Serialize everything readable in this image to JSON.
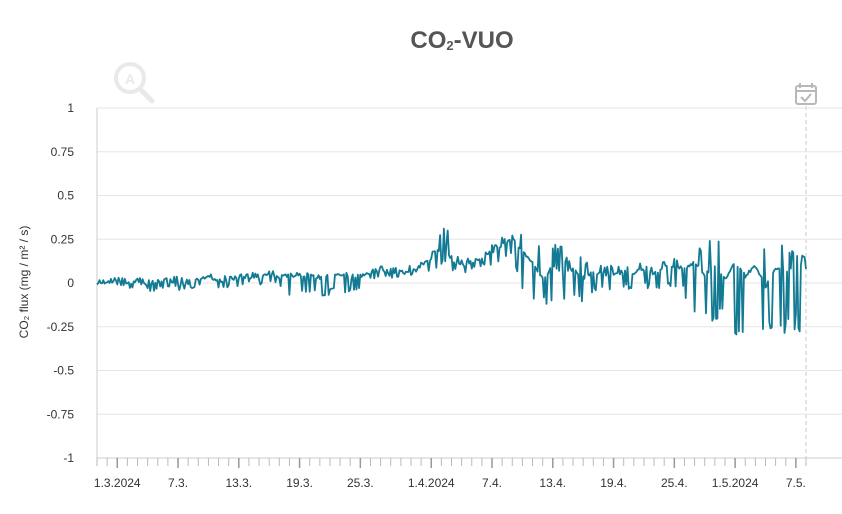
{
  "chart_data": {
    "type": "line",
    "title_main": "CO",
    "title_sub": "2",
    "title_rest": "-VUO",
    "ylabel": "CO₂ flux (mg / m² / s)",
    "ylim": [
      -1,
      1
    ],
    "yticks": [
      "1",
      "0.75",
      "0.5",
      "0.25",
      "0",
      "-0.25",
      "-0.5",
      "-0.75",
      "-1"
    ],
    "x_range": [
      "2024-02-28",
      "2024-05-08"
    ],
    "x_ticks": [
      {
        "date": "2024-03-01",
        "label": "1.3.2024"
      },
      {
        "date": "2024-03-07",
        "label": "7.3."
      },
      {
        "date": "2024-03-13",
        "label": "13.3."
      },
      {
        "date": "2024-03-19",
        "label": "19.3."
      },
      {
        "date": "2024-03-25",
        "label": "25.3."
      },
      {
        "date": "2024-04-01",
        "label": "1.4.2024"
      },
      {
        "date": "2024-04-07",
        "label": "7.4."
      },
      {
        "date": "2024-04-13",
        "label": "13.4."
      },
      {
        "date": "2024-04-19",
        "label": "19.4."
      },
      {
        "date": "2024-04-25",
        "label": "25.4."
      },
      {
        "date": "2024-05-01",
        "label": "1.5.2024"
      },
      {
        "date": "2024-05-07",
        "label": "7.5."
      }
    ],
    "grid": true,
    "series": [
      {
        "color": "#137a93",
        "x": [
          "2024-02-28",
          "2024-02-29",
          "2024-03-01",
          "2024-03-02",
          "2024-03-03",
          "2024-03-04",
          "2024-03-05",
          "2024-03-06",
          "2024-03-07",
          "2024-03-08",
          "2024-03-09",
          "2024-03-10",
          "2024-03-11",
          "2024-03-12",
          "2024-03-13",
          "2024-03-14",
          "2024-03-15",
          "2024-03-16",
          "2024-03-17",
          "2024-03-18",
          "2024-03-19",
          "2024-03-20",
          "2024-03-21",
          "2024-03-22",
          "2024-03-23",
          "2024-03-24",
          "2024-03-25",
          "2024-03-26",
          "2024-03-27",
          "2024-03-28",
          "2024-03-29",
          "2024-03-30",
          "2024-03-31",
          "2024-04-01",
          "2024-04-02",
          "2024-04-03",
          "2024-04-04",
          "2024-04-05",
          "2024-04-06",
          "2024-04-07",
          "2024-04-08",
          "2024-04-09",
          "2024-04-10",
          "2024-04-11",
          "2024-04-12",
          "2024-04-13",
          "2024-04-14",
          "2024-04-15",
          "2024-04-16",
          "2024-04-17",
          "2024-04-18",
          "2024-04-19",
          "2024-04-20",
          "2024-04-21",
          "2024-04-22",
          "2024-04-23",
          "2024-04-24",
          "2024-04-25",
          "2024-04-26",
          "2024-04-27",
          "2024-04-28",
          "2024-04-29",
          "2024-04-30",
          "2024-05-01",
          "2024-05-02",
          "2024-05-03",
          "2024-05-04",
          "2024-05-05",
          "2024-05-06",
          "2024-05-07",
          "2024-05-08"
        ],
        "y": [
          -0.01,
          0.01,
          0.02,
          0.0,
          0.01,
          -0.02,
          0.01,
          0.02,
          0.0,
          -0.01,
          0.02,
          0.03,
          0.01,
          0.02,
          0.03,
          0.04,
          0.02,
          0.05,
          0.03,
          0.04,
          0.05,
          0.04,
          0.03,
          0.04,
          0.05,
          0.03,
          0.04,
          0.06,
          0.08,
          0.06,
          0.07,
          0.05,
          0.1,
          0.14,
          0.3,
          0.12,
          0.1,
          0.12,
          0.15,
          0.18,
          0.22,
          0.25,
          0.18,
          0.12,
          0.02,
          0.1,
          0.05,
          0.08,
          0.03,
          0.06,
          0.05,
          0.04,
          0.07,
          0.06,
          0.08,
          0.05,
          0.09,
          0.1,
          0.08,
          0.12,
          0.05,
          0.1,
          0.02,
          0.12,
          0.04,
          0.1,
          -0.02,
          0.08,
          0.06,
          0.12,
          0.08
        ],
        "fluct_low": [
          0.0,
          0.0,
          -0.02,
          -0.03,
          -0.02,
          -0.05,
          -0.03,
          -0.02,
          -0.04,
          -0.03,
          -0.02,
          -0.01,
          -0.03,
          -0.02,
          -0.02,
          0.0,
          -0.01,
          0.0,
          -0.02,
          -0.08,
          -0.06,
          -0.05,
          -0.08,
          -0.04,
          -0.07,
          -0.05,
          -0.03,
          0.02,
          0.04,
          0.03,
          0.05,
          0.03,
          0.05,
          0.08,
          0.1,
          0.07,
          0.05,
          0.08,
          0.1,
          0.12,
          0.15,
          0.05,
          -0.05,
          -0.15,
          -0.12,
          -0.18,
          -0.1,
          -0.12,
          -0.08,
          -0.05,
          -0.06,
          -0.05,
          -0.04,
          -0.06,
          -0.03,
          -0.05,
          -0.02,
          -0.05,
          -0.1,
          -0.2,
          -0.25,
          -0.22,
          -0.28,
          -0.3,
          -0.25,
          -0.35,
          -0.28,
          -0.32,
          -0.3,
          -0.28,
          0.05
        ],
        "fluct_high": [
          0.02,
          0.03,
          0.03,
          0.02,
          0.03,
          0.02,
          0.03,
          0.04,
          0.03,
          0.02,
          0.04,
          0.05,
          0.04,
          0.04,
          0.05,
          0.06,
          0.05,
          0.07,
          0.05,
          0.06,
          0.06,
          0.05,
          0.05,
          0.05,
          0.06,
          0.05,
          0.05,
          0.08,
          0.1,
          0.09,
          0.1,
          0.08,
          0.12,
          0.18,
          0.32,
          0.16,
          0.14,
          0.16,
          0.18,
          0.22,
          0.26,
          0.28,
          0.24,
          0.22,
          0.18,
          0.22,
          0.15,
          0.16,
          0.12,
          0.1,
          0.1,
          0.1,
          0.1,
          0.12,
          0.1,
          0.12,
          0.12,
          0.14,
          0.16,
          0.22,
          0.25,
          0.24,
          0.26,
          0.25,
          0.26,
          0.24,
          0.25,
          0.22,
          0.2,
          0.16,
          0.1
        ]
      }
    ]
  },
  "icons": {
    "zoom": "zoom-magnifier-icon",
    "calendar": "calendar-check-icon"
  }
}
